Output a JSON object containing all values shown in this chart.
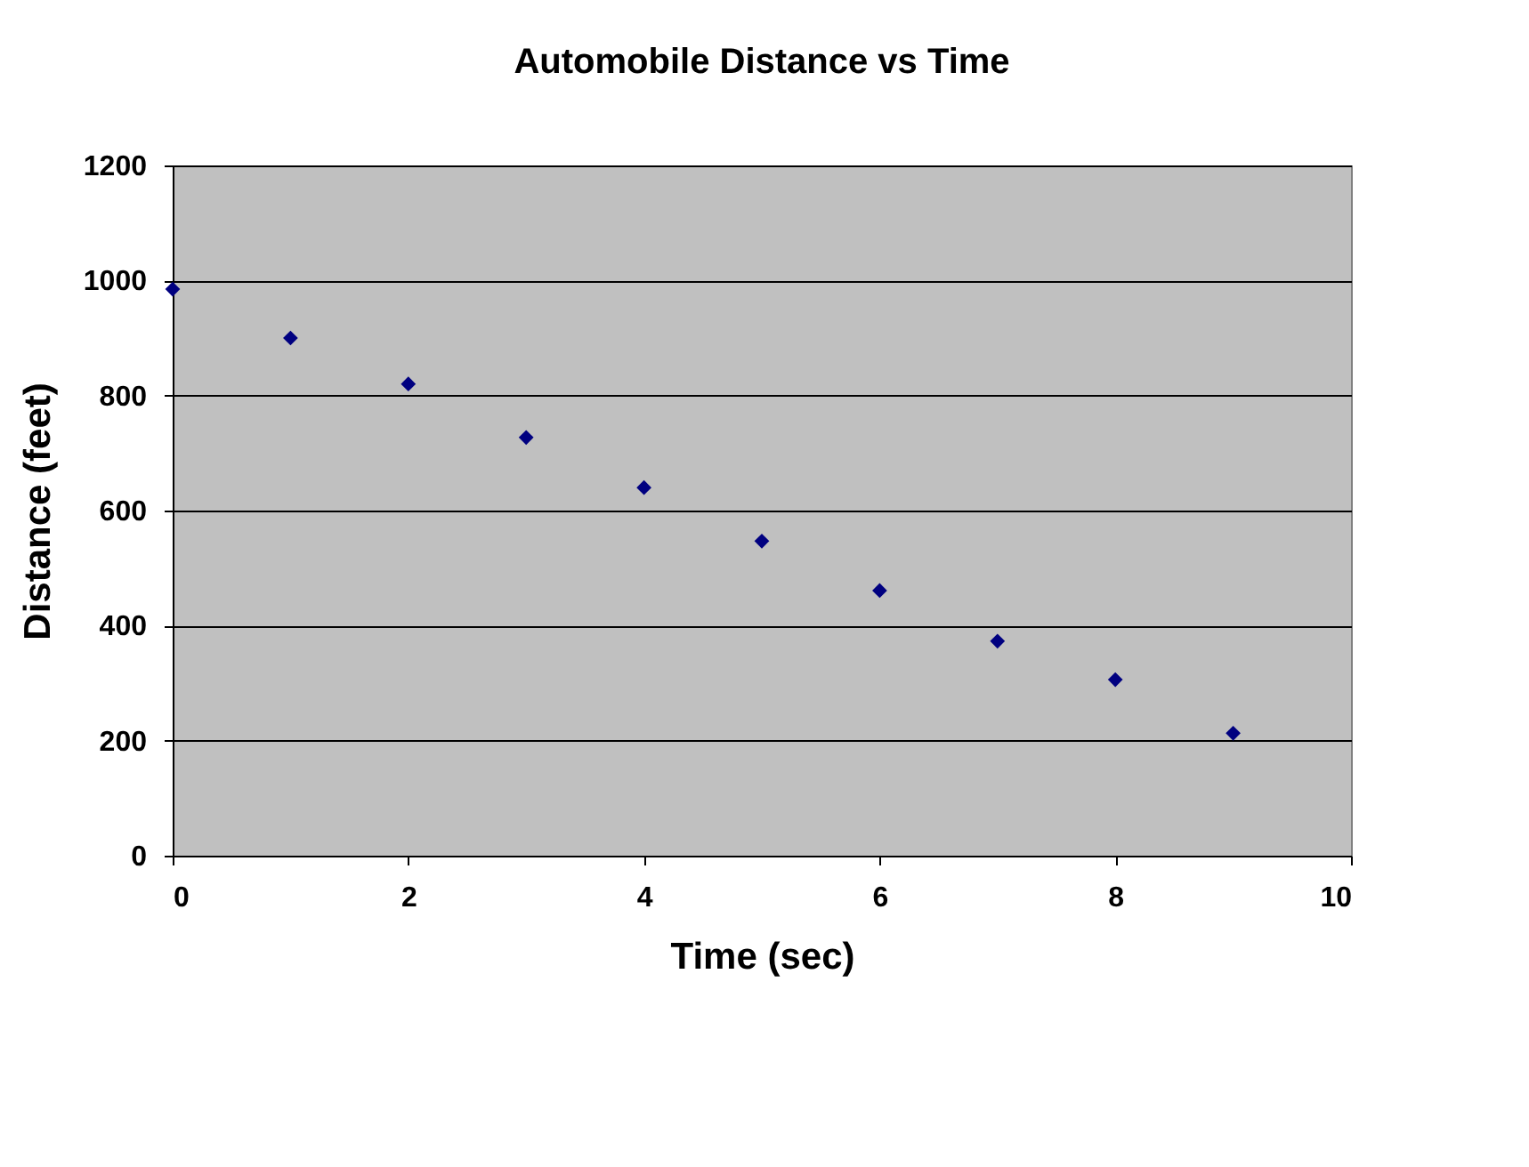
{
  "chart_data": {
    "type": "scatter",
    "title": "Automobile Distance vs Time",
    "xlabel": "Time (sec)",
    "ylabel": "Distance (feet)",
    "x": [
      0,
      1,
      2,
      3,
      4,
      5,
      6,
      7,
      8,
      9
    ],
    "series": [
      {
        "color": "#000080",
        "values": [
          985,
          900,
          820,
          727,
          640,
          547,
          461,
          373,
          306,
          213
        ]
      }
    ],
    "xlim": [
      0,
      10
    ],
    "xticks": [
      0,
      2,
      4,
      6,
      8,
      10
    ],
    "ylim": [
      0,
      1200
    ],
    "yticks": [
      0,
      200,
      400,
      600,
      800,
      1000,
      1200
    ],
    "grid": "y",
    "marker": "diamond"
  }
}
